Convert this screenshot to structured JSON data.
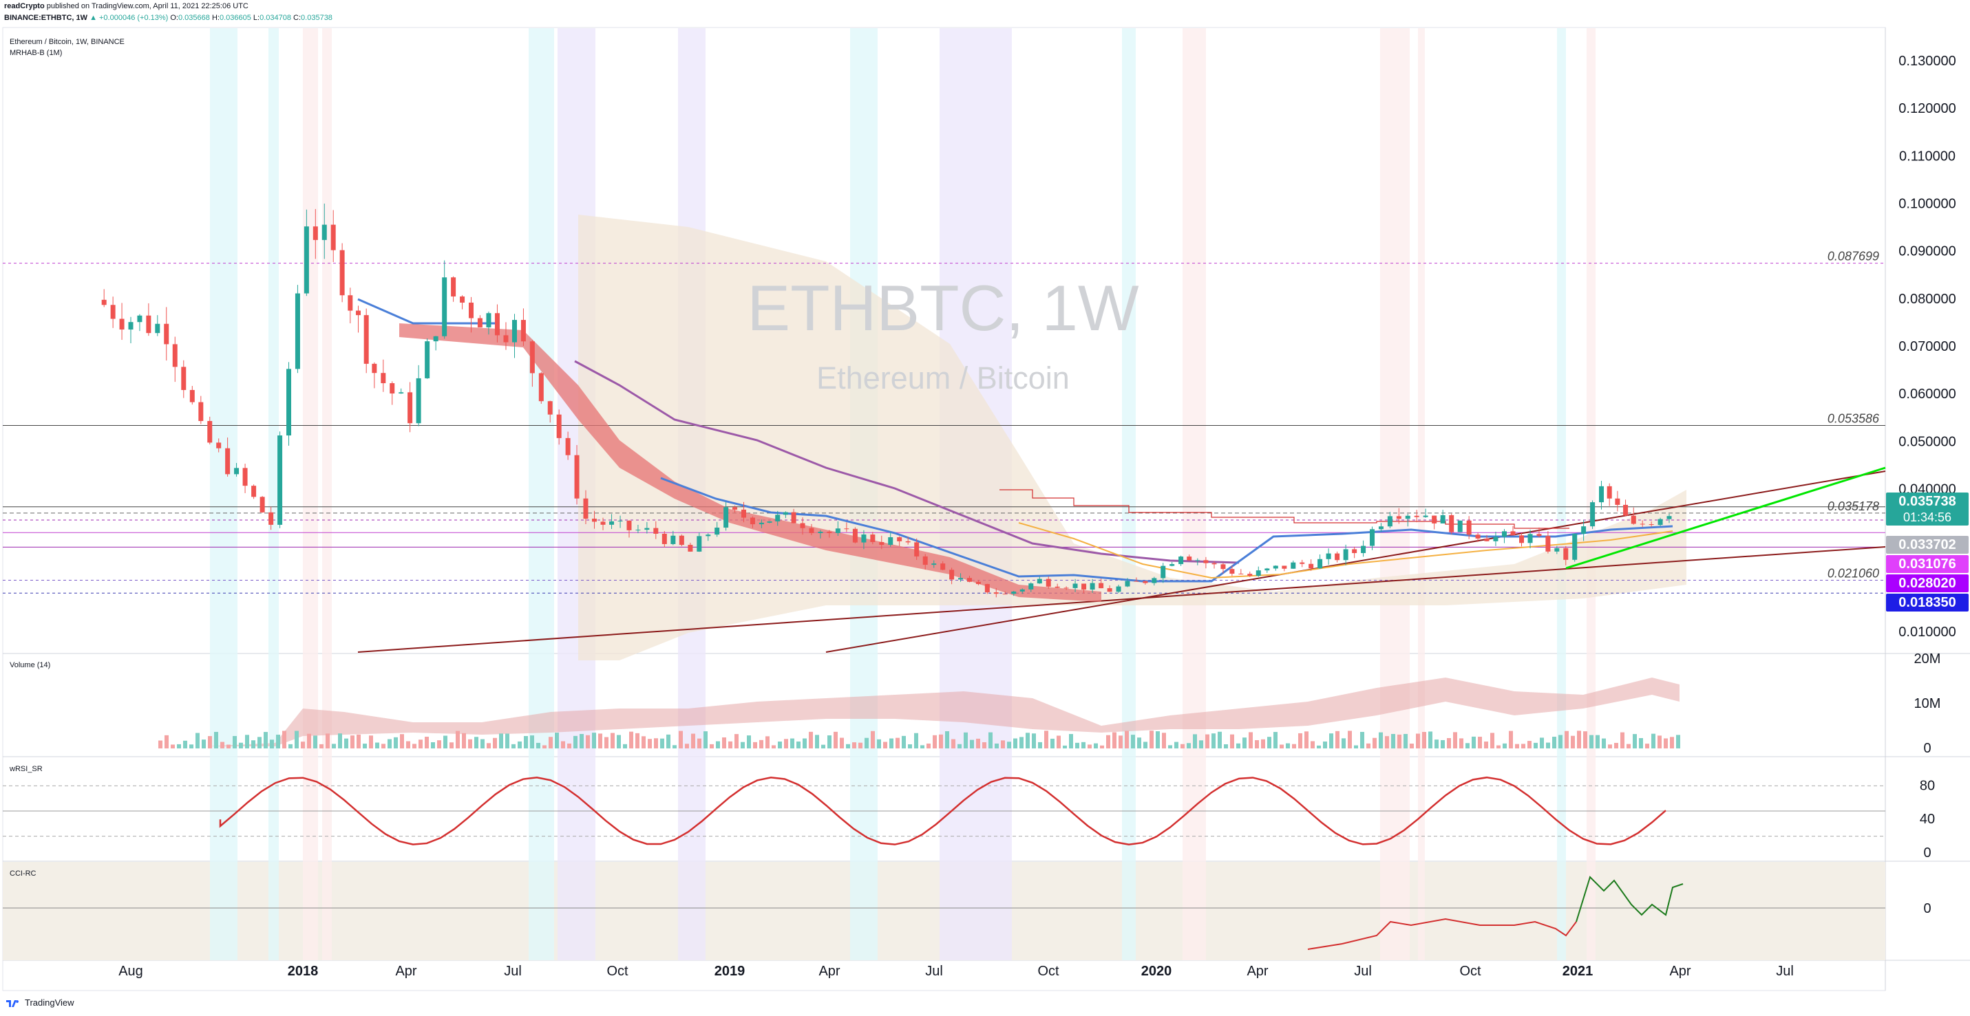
{
  "header": {
    "author": "readCrypto",
    "published": "published on TradingView.com, April 11, 2021 22:25:06 UTC",
    "symbol": "BINANCE:ETHBTC, 1W",
    "change": "▲ +0.000046 (+0.13%)",
    "ohlc": {
      "O": "0.035668",
      "H": "0.036605",
      "L": "0.034708",
      "C": "0.035738"
    }
  },
  "legend": {
    "title": "Ethereum / Bitcoin, 1W, BINANCE",
    "indicator": "MRHAB-B (1M)"
  },
  "watermark": {
    "symbol": "ETHBTC, 1W",
    "name": "Ethereum / Bitcoin"
  },
  "price_axis": {
    "ticks": [
      "0.130000",
      "0.120000",
      "0.110000",
      "0.100000",
      "0.090000",
      "0.080000",
      "0.070000",
      "0.060000",
      "0.050000",
      "0.040000",
      "0.035178",
      "0.021060",
      "0.010000"
    ],
    "tick_values": [
      0.13,
      0.12,
      0.11,
      0.1,
      0.09,
      0.08,
      0.07,
      0.06,
      0.05,
      0.04,
      0.035178,
      0.02106,
      0.01
    ],
    "badges": [
      {
        "text": "0.035738",
        "sub": "01:34:56",
        "color": "#26a69a",
        "value": 0.035738
      },
      {
        "text": "0.033702",
        "color": "#b2b5be",
        "value": 0.033702
      },
      {
        "text": "0.031076",
        "color": "#e040fb",
        "value": 0.031076
      },
      {
        "text": "0.028020",
        "color": "#aa00ff",
        "value": 0.02802
      },
      {
        "text": "0.018350",
        "color": "#1e1ee6",
        "value": 0.01835
      }
    ]
  },
  "level_labels": [
    {
      "text": "0.087699",
      "value": 0.087699
    },
    {
      "text": "0.053586",
      "value": 0.053586
    },
    {
      "text": "0.035178",
      "value": 0.035178
    },
    {
      "text": "0.021060",
      "value": 0.02106
    }
  ],
  "time_axis": [
    "Aug",
    "2018",
    "Apr",
    "Jul",
    "Oct",
    "2019",
    "Apr",
    "Jul",
    "Oct",
    "2020",
    "Apr",
    "Jul",
    "Oct",
    "2021",
    "Apr",
    "Jul"
  ],
  "panes": {
    "volume": {
      "label": "Volume (14)",
      "ticks": [
        "20M",
        "10M",
        "0"
      ]
    },
    "rsi": {
      "label": "wRSI_SR",
      "ticks": [
        "80",
        "40",
        "0"
      ]
    },
    "cci": {
      "label": "CCI-RC",
      "ticks": [
        "0"
      ]
    }
  },
  "footer": {
    "brand": "TradingView"
  },
  "colors": {
    "up": "#26a69a",
    "down": "#ef5350",
    "green_line": "#00e600",
    "brown_line": "#8b0000",
    "purple_ma": "#9c59a8",
    "blue_ma": "#4a7fd8"
  },
  "chart_data": {
    "type": "candlestick",
    "timeframe": "1W",
    "x_range": [
      "2017-07",
      "2021-09"
    ],
    "ylim": [
      0.005,
      0.135
    ],
    "approx_close_path": [
      {
        "date": "2017-07",
        "value": 0.08
      },
      {
        "date": "2017-08",
        "value": 0.076
      },
      {
        "date": "2017-09",
        "value": 0.074
      },
      {
        "date": "2017-10",
        "value": 0.052
      },
      {
        "date": "2017-11",
        "value": 0.043
      },
      {
        "date": "2017-12",
        "value": 0.033
      },
      {
        "date": "2018-01",
        "value": 0.098
      },
      {
        "date": "2018-02",
        "value": 0.085
      },
      {
        "date": "2018-03",
        "value": 0.065
      },
      {
        "date": "2018-04",
        "value": 0.056
      },
      {
        "date": "2018-05",
        "value": 0.082
      },
      {
        "date": "2018-06",
        "value": 0.077
      },
      {
        "date": "2018-07",
        "value": 0.074
      },
      {
        "date": "2018-08",
        "value": 0.057
      },
      {
        "date": "2018-09",
        "value": 0.034
      },
      {
        "date": "2018-10",
        "value": 0.032
      },
      {
        "date": "2018-11",
        "value": 0.031
      },
      {
        "date": "2018-12",
        "value": 0.027
      },
      {
        "date": "2019-01",
        "value": 0.035
      },
      {
        "date": "2019-02",
        "value": 0.034
      },
      {
        "date": "2019-03",
        "value": 0.034
      },
      {
        "date": "2019-04",
        "value": 0.031
      },
      {
        "date": "2019-05",
        "value": 0.03
      },
      {
        "date": "2019-06",
        "value": 0.029
      },
      {
        "date": "2019-07",
        "value": 0.024
      },
      {
        "date": "2019-08",
        "value": 0.02
      },
      {
        "date": "2019-09",
        "value": 0.018
      },
      {
        "date": "2019-10",
        "value": 0.021
      },
      {
        "date": "2019-11",
        "value": 0.02
      },
      {
        "date": "2019-12",
        "value": 0.019
      },
      {
        "date": "2020-01",
        "value": 0.021
      },
      {
        "date": "2020-02",
        "value": 0.027
      },
      {
        "date": "2020-03",
        "value": 0.024
      },
      {
        "date": "2020-04",
        "value": 0.022
      },
      {
        "date": "2020-05",
        "value": 0.024
      },
      {
        "date": "2020-06",
        "value": 0.025
      },
      {
        "date": "2020-07",
        "value": 0.027
      },
      {
        "date": "2020-08",
        "value": 0.036
      },
      {
        "date": "2020-09",
        "value": 0.035
      },
      {
        "date": "2020-10",
        "value": 0.032
      },
      {
        "date": "2020-11",
        "value": 0.03
      },
      {
        "date": "2020-12",
        "value": 0.03
      },
      {
        "date": "2021-01",
        "value": 0.026
      },
      {
        "date": "2021-02",
        "value": 0.04
      },
      {
        "date": "2021-03",
        "value": 0.032
      },
      {
        "date": "2021-04",
        "value": 0.035738
      }
    ],
    "horizontal_levels": [
      0.087699,
      0.053586,
      0.0365,
      0.035178,
      0.033702,
      0.031076,
      0.02802,
      0.02106,
      0.01835
    ],
    "volume_ylim": [
      0,
      20000000
    ],
    "rsi_ylim": [
      0,
      100
    ]
  }
}
